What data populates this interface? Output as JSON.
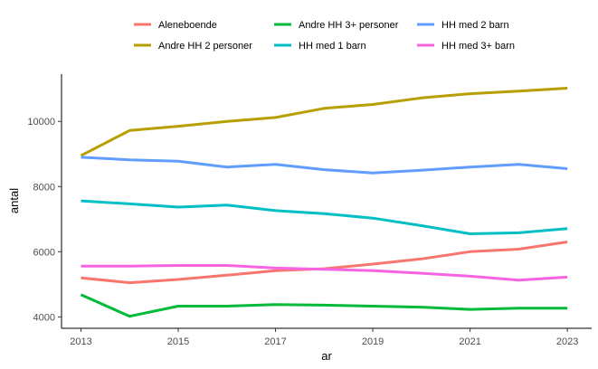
{
  "chart_data": {
    "type": "line",
    "xlabel": "ar",
    "ylabel": "antal",
    "x": [
      2013,
      2014,
      2015,
      2016,
      2017,
      2018,
      2019,
      2020,
      2021,
      2022,
      2023
    ],
    "xticks": [
      2013,
      2015,
      2017,
      2019,
      2021,
      2023
    ],
    "yticks": [
      4000,
      6000,
      8000,
      10000
    ],
    "xlim": [
      2012.6,
      2023.5
    ],
    "ylim": [
      3650,
      11450
    ],
    "grid": false,
    "legend_position": "top",
    "series": [
      {
        "name": "Aleneboende",
        "color": "#F8766D",
        "values": [
          5200,
          5050,
          5150,
          5280,
          5420,
          5480,
          5620,
          5780,
          6000,
          6080,
          6300
        ]
      },
      {
        "name": "Andre HH 2 personer",
        "color": "#B79F00",
        "values": [
          8950,
          9720,
          9850,
          10000,
          10120,
          10400,
          10520,
          10720,
          10850,
          10930,
          11020
        ]
      },
      {
        "name": "Andre HH 3+ personer",
        "color": "#00BA38",
        "values": [
          4680,
          4020,
          4330,
          4330,
          4380,
          4360,
          4330,
          4300,
          4230,
          4270,
          4270
        ]
      },
      {
        "name": "HH med 1 barn",
        "color": "#00BFC4",
        "values": [
          7560,
          7470,
          7370,
          7430,
          7260,
          7170,
          7030,
          6800,
          6550,
          6580,
          6710
        ]
      },
      {
        "name": "HH med 2 barn",
        "color": "#619CFF",
        "values": [
          8900,
          8820,
          8780,
          8600,
          8680,
          8520,
          8420,
          8500,
          8600,
          8680,
          8550
        ]
      },
      {
        "name": "HH med 3+ barn",
        "color": "#F564E3",
        "values": [
          5560,
          5560,
          5580,
          5580,
          5500,
          5460,
          5420,
          5340,
          5250,
          5130,
          5220
        ]
      }
    ]
  }
}
